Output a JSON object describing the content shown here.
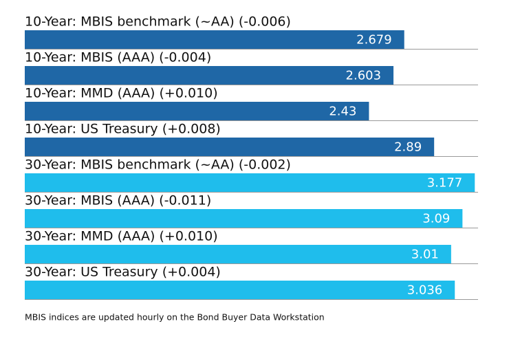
{
  "chart_data": {
    "type": "hbar",
    "categories": [
      "10-Year: MBIS benchmark (~AA) (-0.006)",
      "10-Year: MBIS (AAA) (-0.004)",
      "10-Year: MMD (AAA) (+0.010)",
      "10-Year: US Treasury (+0.008)",
      "30-Year: MBIS benchmark (~AA) (-0.002)",
      "30-Year: MBIS (AAA) (-0.011)",
      "30-Year: MMD (AAA) (+0.010)",
      "30-Year: US Treasury (+0.004)"
    ],
    "values": [
      2.679,
      2.603,
      2.43,
      2.89,
      3.177,
      3.09,
      3.01,
      3.036
    ],
    "colors": [
      "#1f67a6",
      "#1f67a6",
      "#1f67a6",
      "#1f67a6",
      "#1fbdec",
      "#1fbdec",
      "#1fbdec",
      "#1fbdec"
    ],
    "xlim": [
      0,
      3.2
    ],
    "note": "MBIS indices are updated hourly on the Bond Buyer Data Workstation"
  }
}
